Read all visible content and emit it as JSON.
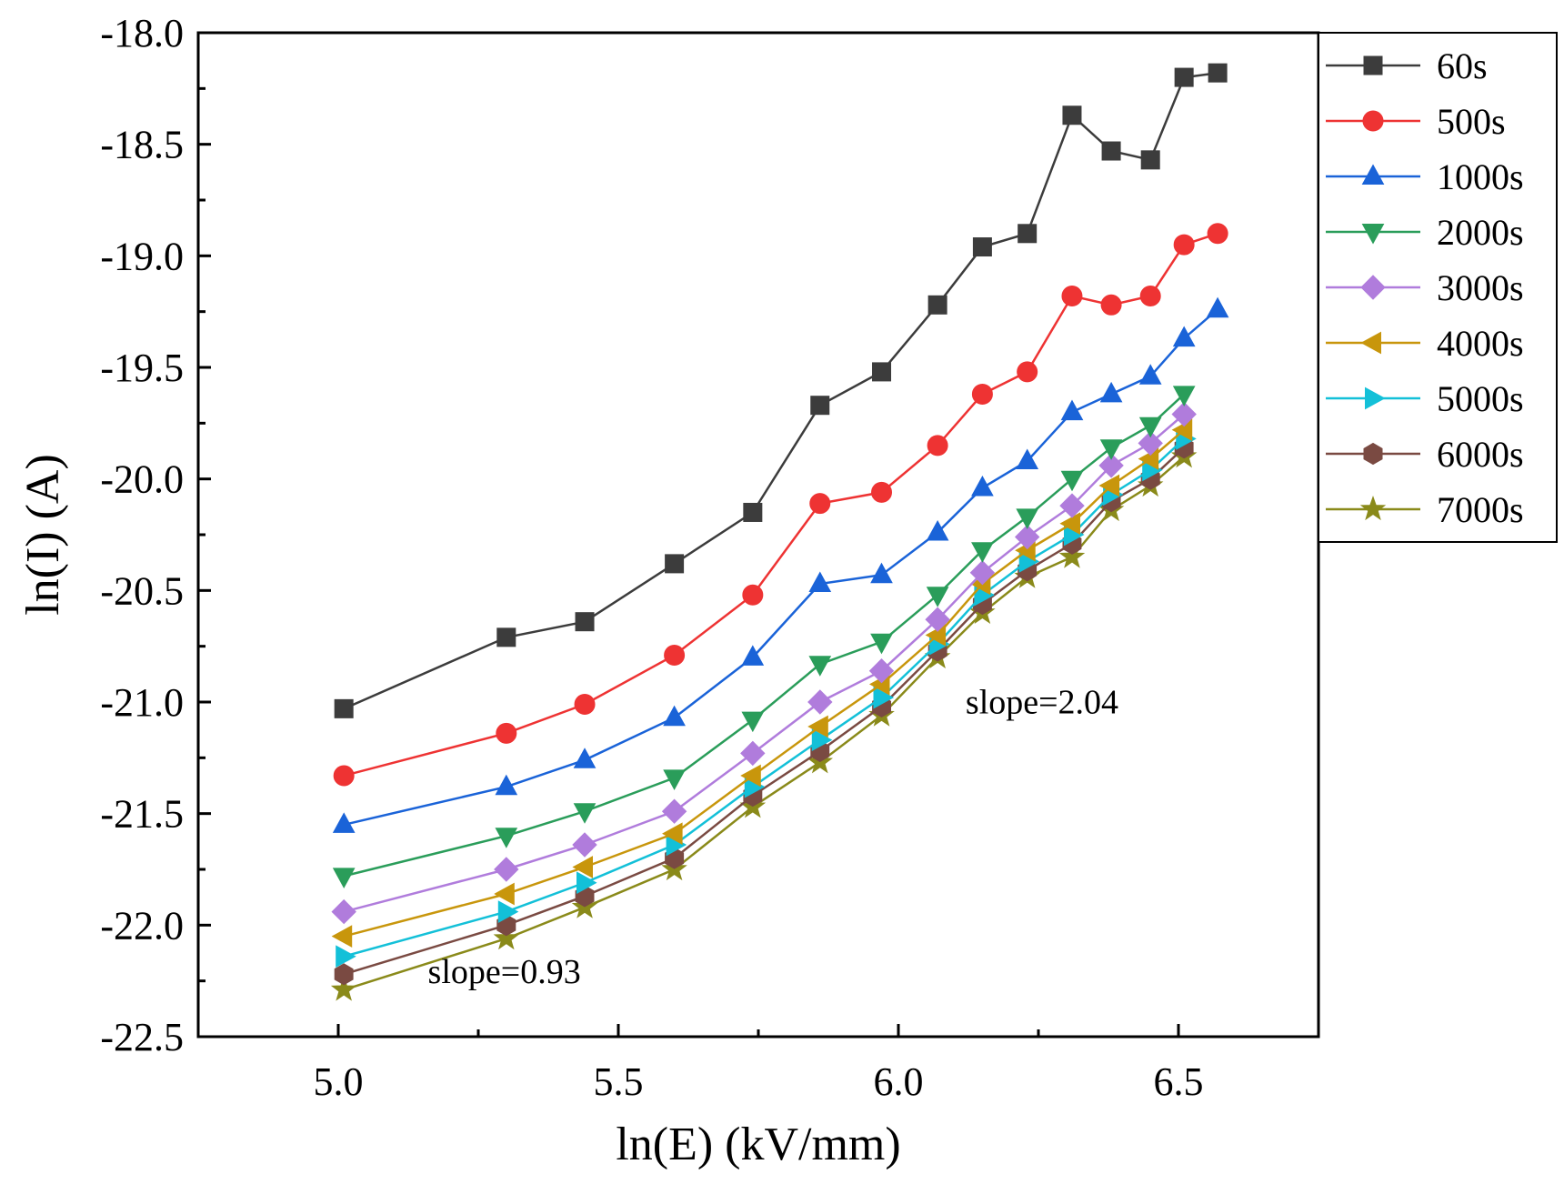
{
  "chart_data": {
    "type": "line",
    "title": "",
    "xlabel": "ln(E) (kV/mm)",
    "ylabel": "ln(I) (A)",
    "xlim": [
      4.75,
      6.75
    ],
    "ylim": [
      -22.5,
      -18.0
    ],
    "xticks": [
      "5.0",
      "5.5",
      "6.0",
      "6.5"
    ],
    "xtick_values": [
      5.0,
      5.5,
      6.0,
      6.5
    ],
    "yticks": [
      "-18.0",
      "-18.5",
      "-19.0",
      "-19.5",
      "-20.0",
      "-20.5",
      "-21.0",
      "-21.5",
      "-22.0",
      "-22.5"
    ],
    "ytick_values": [
      -18.0,
      -18.5,
      -19.0,
      -19.5,
      -20.0,
      -20.5,
      -21.0,
      -21.5,
      -22.0,
      -22.5
    ],
    "legend_position": "top-right-outside",
    "grid": false,
    "series": [
      {
        "name": "60s",
        "color": "#3c3c3c",
        "marker": "square",
        "x": [
          5.01,
          5.3,
          5.44,
          5.6,
          5.74,
          5.86,
          5.97,
          6.07,
          6.15,
          6.23,
          6.31,
          6.38,
          6.45,
          6.51,
          6.57
        ],
        "y": [
          -21.03,
          -20.71,
          -20.64,
          -20.38,
          -20.15,
          -19.67,
          -19.52,
          -19.22,
          -18.96,
          -18.9,
          -18.37,
          -18.53,
          -18.57,
          -18.2,
          -18.18
        ]
      },
      {
        "name": "500s",
        "color": "#ee3333",
        "marker": "circle",
        "x": [
          5.01,
          5.3,
          5.44,
          5.6,
          5.74,
          5.86,
          5.97,
          6.07,
          6.15,
          6.23,
          6.31,
          6.38,
          6.45,
          6.51,
          6.57
        ],
        "y": [
          -21.33,
          -21.14,
          -21.01,
          -20.79,
          -20.52,
          -20.11,
          -20.06,
          -19.85,
          -19.62,
          -19.52,
          -19.18,
          -19.22,
          -19.18,
          -18.95,
          -18.9
        ]
      },
      {
        "name": "1000s",
        "color": "#1a63d8",
        "marker": "triangle-up",
        "x": [
          5.01,
          5.3,
          5.44,
          5.6,
          5.74,
          5.86,
          5.97,
          6.07,
          6.15,
          6.23,
          6.31,
          6.38,
          6.45,
          6.51,
          6.57
        ],
        "y": [
          -21.55,
          -21.38,
          -21.26,
          -21.07,
          -20.8,
          -20.47,
          -20.43,
          -20.24,
          -20.04,
          -19.92,
          -19.7,
          -19.62,
          -19.54,
          -19.37,
          -19.24
        ]
      },
      {
        "name": "2000s",
        "color": "#2a9d5a",
        "marker": "triangle-down",
        "x": [
          5.01,
          5.3,
          5.44,
          5.6,
          5.74,
          5.86,
          5.97,
          6.07,
          6.15,
          6.23,
          6.31,
          6.38,
          6.45,
          6.51
        ],
        "y": [
          -21.78,
          -21.6,
          -21.49,
          -21.34,
          -21.08,
          -20.83,
          -20.73,
          -20.52,
          -20.32,
          -20.17,
          -20.0,
          -19.86,
          -19.76,
          -19.62
        ]
      },
      {
        "name": "3000s",
        "color": "#b07cdc",
        "marker": "diamond",
        "x": [
          5.01,
          5.3,
          5.44,
          5.6,
          5.74,
          5.86,
          5.97,
          6.07,
          6.15,
          6.23,
          6.31,
          6.38,
          6.45,
          6.51
        ],
        "y": [
          -21.94,
          -21.75,
          -21.64,
          -21.49,
          -21.23,
          -21.0,
          -20.86,
          -20.63,
          -20.42,
          -20.26,
          -20.12,
          -19.94,
          -19.84,
          -19.71
        ]
      },
      {
        "name": "4000s",
        "color": "#c8960c",
        "marker": "triangle-left",
        "x": [
          5.01,
          5.3,
          5.44,
          5.6,
          5.74,
          5.86,
          5.97,
          6.07,
          6.15,
          6.23,
          6.31,
          6.38,
          6.45,
          6.51
        ],
        "y": [
          -22.05,
          -21.86,
          -21.74,
          -21.59,
          -21.33,
          -21.11,
          -20.92,
          -20.7,
          -20.47,
          -20.32,
          -20.2,
          -20.03,
          -19.91,
          -19.78
        ]
      },
      {
        "name": "5000s",
        "color": "#13c0d8",
        "marker": "triangle-right",
        "x": [
          5.01,
          5.3,
          5.44,
          5.6,
          5.74,
          5.86,
          5.97,
          6.07,
          6.15,
          6.23,
          6.31,
          6.38,
          6.45,
          6.51
        ],
        "y": [
          -22.14,
          -21.94,
          -21.81,
          -21.64,
          -21.38,
          -21.17,
          -20.98,
          -20.74,
          -20.52,
          -20.37,
          -20.25,
          -20.07,
          -19.96,
          -19.82
        ]
      },
      {
        "name": "6000s",
        "color": "#7a4a42",
        "marker": "hexagon",
        "x": [
          5.01,
          5.3,
          5.44,
          5.6,
          5.74,
          5.86,
          5.97,
          6.07,
          6.15,
          6.23,
          6.31,
          6.38,
          6.45,
          6.51
        ],
        "y": [
          -22.22,
          -22.0,
          -21.87,
          -21.7,
          -21.42,
          -21.22,
          -21.02,
          -20.77,
          -20.56,
          -20.41,
          -20.29,
          -20.1,
          -20.0,
          -19.86
        ]
      },
      {
        "name": "7000s",
        "color": "#8a8a1a",
        "marker": "star",
        "x": [
          5.01,
          5.3,
          5.44,
          5.6,
          5.74,
          5.86,
          5.97,
          6.07,
          6.15,
          6.23,
          6.31,
          6.38,
          6.45,
          6.51
        ],
        "y": [
          -22.29,
          -22.06,
          -21.92,
          -21.75,
          -21.47,
          -21.27,
          -21.06,
          -20.8,
          -20.6,
          -20.44,
          -20.35,
          -20.14,
          -20.03,
          -19.9
        ]
      }
    ],
    "annotations": [
      {
        "text": "slope=0.93",
        "x": 5.16,
        "y": -22.26
      },
      {
        "text": "slope=2.04",
        "x": 6.12,
        "y": -21.05
      }
    ]
  }
}
